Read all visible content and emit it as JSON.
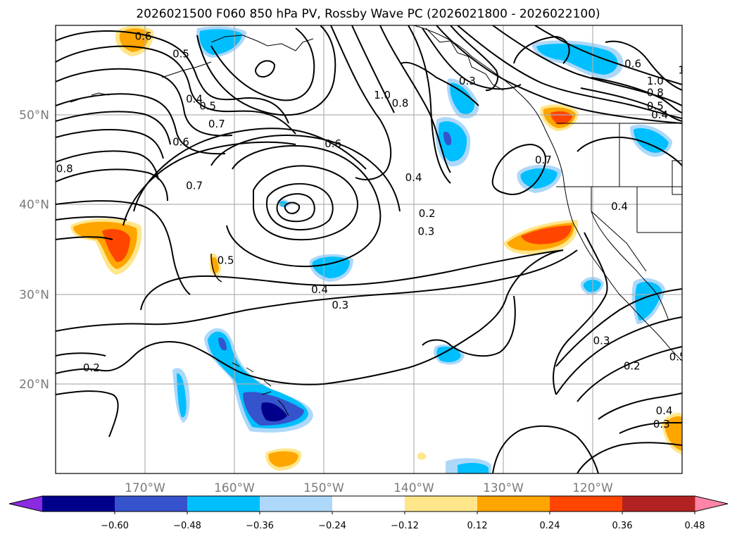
{
  "title": "2026021500 F060 850 hPa PV, Rossby Wave PC (2026021800 - 2026022100)",
  "lon_ticks": [
    "170°W",
    "160°W",
    "150°W",
    "140°W",
    "130°W",
    "120°W"
  ],
  "lat_ticks": [
    "50°N",
    "40°N",
    "30°N",
    "20°N"
  ],
  "extent": {
    "lon_min": -180,
    "lon_max": -110,
    "lat_min": 10,
    "lat_max": 60
  },
  "colorbar": {
    "colors": [
      "#8a2be2",
      "#00008b",
      "#3553cc",
      "#00bfff",
      "#add8fa",
      "#ffffff",
      "#ffe68a",
      "#ffa500",
      "#ff4500",
      "#b22222",
      "#ff85a8"
    ],
    "ticks": [
      "−0.60",
      "−0.48",
      "−0.36",
      "−0.24",
      "−0.12",
      "0.12",
      "0.24",
      "0.36",
      "0.48",
      "0.60"
    ],
    "extend": "both"
  },
  "contour_labels": [
    {
      "text": "0.6",
      "lon": -170.2,
      "lat": 58.8
    },
    {
      "text": "0.5",
      "lon": -166.0,
      "lat": 56.8
    },
    {
      "text": "0.4",
      "lon": -164.5,
      "lat": 51.8
    },
    {
      "text": "0.5",
      "lon": -163.0,
      "lat": 51.0
    },
    {
      "text": "0.7",
      "lon": -162.0,
      "lat": 49.0
    },
    {
      "text": "0.6",
      "lon": -166.0,
      "lat": 47.0
    },
    {
      "text": "0.8",
      "lon": -179.0,
      "lat": 44.0
    },
    {
      "text": "1.0",
      "lon": -143.5,
      "lat": 52.2
    },
    {
      "text": "0.8",
      "lon": -141.5,
      "lat": 51.3
    },
    {
      "text": "0.6",
      "lon": -149.0,
      "lat": 46.8
    },
    {
      "text": "0.7",
      "lon": -164.5,
      "lat": 42.1
    },
    {
      "text": "0.4",
      "lon": -140.0,
      "lat": 43.0
    },
    {
      "text": "0.2",
      "lon": -138.5,
      "lat": 39.0
    },
    {
      "text": "0.3",
      "lon": -138.6,
      "lat": 37.0
    },
    {
      "text": "0.7",
      "lon": -125.5,
      "lat": 45.0
    },
    {
      "text": "0.3",
      "lon": -134.0,
      "lat": 53.8
    },
    {
      "text": "0.6",
      "lon": -115.5,
      "lat": 55.7
    },
    {
      "text": "1.2",
      "lon": -109.5,
      "lat": 55.0
    },
    {
      "text": "1.4",
      "lon": -108.0,
      "lat": 55.5
    },
    {
      "text": "1.0",
      "lon": -113.0,
      "lat": 53.8
    },
    {
      "text": "0.8",
      "lon": -113.0,
      "lat": 52.5
    },
    {
      "text": "0.5",
      "lon": -113.0,
      "lat": 51.0
    },
    {
      "text": "0.4",
      "lon": -112.5,
      "lat": 50.0
    },
    {
      "text": "0.4",
      "lon": -117.0,
      "lat": 39.8
    },
    {
      "text": "0.5",
      "lon": -161.0,
      "lat": 33.8
    },
    {
      "text": "0.4",
      "lon": -150.5,
      "lat": 30.5
    },
    {
      "text": "0.3",
      "lon": -148.2,
      "lat": 28.8
    },
    {
      "text": "0.2",
      "lon": -176.0,
      "lat": 21.8
    },
    {
      "text": "0.3",
      "lon": -119.0,
      "lat": 24.8
    },
    {
      "text": "0.2",
      "lon": -115.6,
      "lat": 22.0
    },
    {
      "text": "0.5",
      "lon": -110.5,
      "lat": 23.0
    },
    {
      "text": "0.4",
      "lon": -112.0,
      "lat": 17.0
    },
    {
      "text": "0.3",
      "lon": -112.3,
      "lat": 15.5
    }
  ]
}
